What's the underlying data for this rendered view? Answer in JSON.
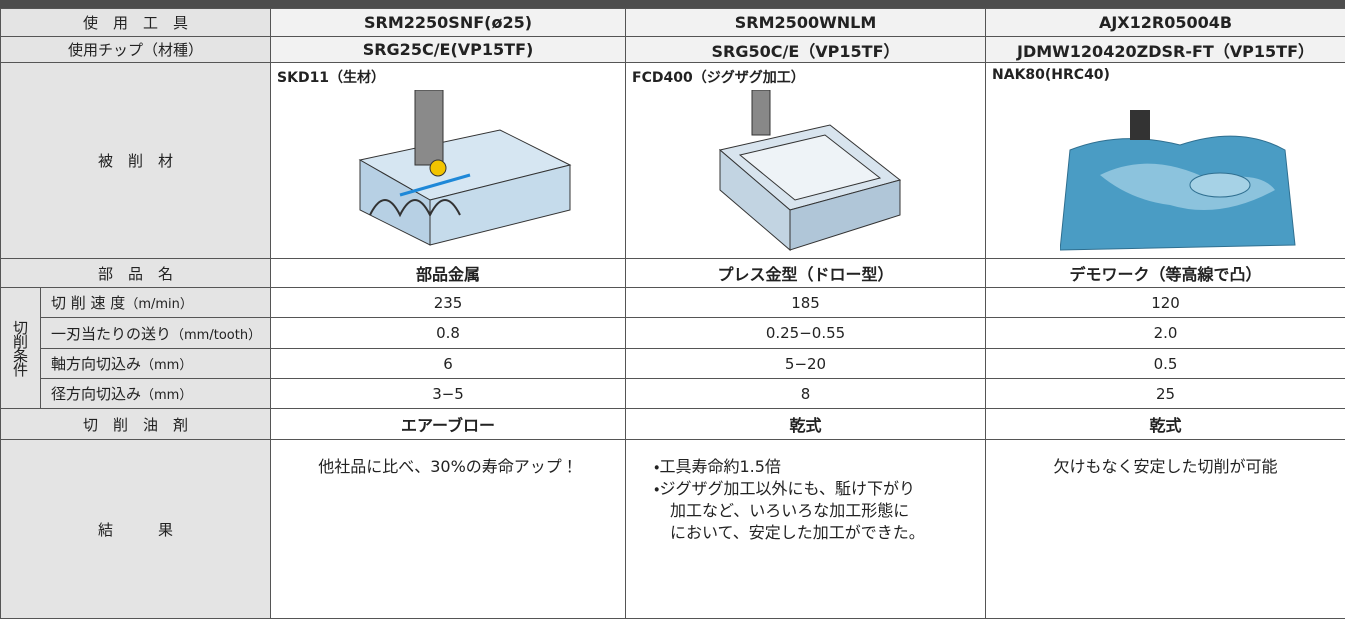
{
  "table": {
    "rows": [
      {
        "label": "使　用　工　具",
        "values": [
          "SRM2250SNF(ø25)",
          "SRM2500WNLM",
          "AJX12R05004B"
        ]
      },
      {
        "label": "使用チップ（材種）",
        "values": [
          "SRG25C/E(VP15TF)",
          "SRG50C/E（VP15TF）",
          "JDMW120420ZDSR-FT（VP15TF）"
        ]
      },
      {
        "label": "被　削　材",
        "values": [
          "SKD11（生材）",
          "FCD400（ジグザグ加工）",
          "NAK80(HRC40)"
        ]
      },
      {
        "label": "部　品　名",
        "values": [
          "部品金属",
          "プレス金型（ドロー型）",
          "デモワーク（等高線で凸）"
        ]
      }
    ],
    "conditions": {
      "group": "切削条件",
      "rows": [
        {
          "label": "切 削 速 度",
          "unit": "（m/min）",
          "values": [
            "235",
            "185",
            "120"
          ]
        },
        {
          "label": "一刃当たりの送り",
          "unit": "（mm/tooth）",
          "values": [
            "0.8",
            "0.25−0.55",
            "2.0"
          ]
        },
        {
          "label": "軸方向切込み",
          "unit": "（mm）",
          "values": [
            "6",
            "5−20",
            "0.5"
          ]
        },
        {
          "label": "径方向切込み",
          "unit": "（mm）",
          "values": [
            "3−5",
            "8",
            "25"
          ]
        }
      ]
    },
    "coolant": {
      "label": "切　削　油　剤",
      "values": [
        "エアーブロー",
        "乾式",
        "乾式"
      ]
    },
    "result": {
      "label": "結　　　果",
      "values": [
        [
          "他社品に比べ、30%の寿命アップ！"
        ],
        [
          "・工具寿命約1.5倍",
          "・ジグザグ加工以外にも、駈け下がり",
          "加工など、いろいろな加工形態に",
          "において、安定した加工ができた。"
        ],
        [
          "欠けもなく安定した切削が可能"
        ]
      ]
    }
  }
}
